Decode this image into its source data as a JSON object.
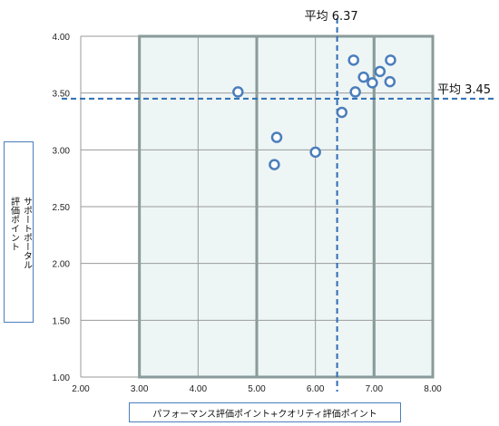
{
  "chart_data": {
    "type": "scatter",
    "title": "",
    "xlabel": "パフォーマンス評価ポイント+クオリティ評価ポイント",
    "ylabel": "サポートポータル\n評価ポイント",
    "xlim": [
      2.0,
      8.0
    ],
    "ylim": [
      1.0,
      4.0
    ],
    "x_ticks": [
      "2.00",
      "3.00",
      "4.00",
      "5.00",
      "6.00",
      "7.00",
      "8.00"
    ],
    "y_ticks": [
      "1.00",
      "1.50",
      "2.00",
      "2.50",
      "3.00",
      "3.50",
      "4.00"
    ],
    "grid": true,
    "points": [
      {
        "x": 4.68,
        "y": 3.51
      },
      {
        "x": 5.34,
        "y": 3.11
      },
      {
        "x": 5.3,
        "y": 2.87
      },
      {
        "x": 6.0,
        "y": 2.98
      },
      {
        "x": 6.45,
        "y": 3.33
      },
      {
        "x": 6.65,
        "y": 3.79
      },
      {
        "x": 6.68,
        "y": 3.51
      },
      {
        "x": 6.82,
        "y": 3.64
      },
      {
        "x": 6.97,
        "y": 3.59
      },
      {
        "x": 7.1,
        "y": 3.69
      },
      {
        "x": 7.28,
        "y": 3.79
      },
      {
        "x": 7.27,
        "y": 3.6
      }
    ],
    "avg_x": 6.37,
    "avg_y": 3.45,
    "avg_x_label": "平均 6.37",
    "avg_y_label": "平均 3.45",
    "highlight_x_bands": [
      [
        3.0,
        5.0
      ],
      [
        5.0,
        7.0
      ],
      [
        7.0,
        8.0
      ]
    ],
    "colors": {
      "marker": "#4a7ebb",
      "avg_line": "#2e6db4",
      "band_border": "#7f9a9a",
      "band_fill": "#eef5f5"
    }
  }
}
